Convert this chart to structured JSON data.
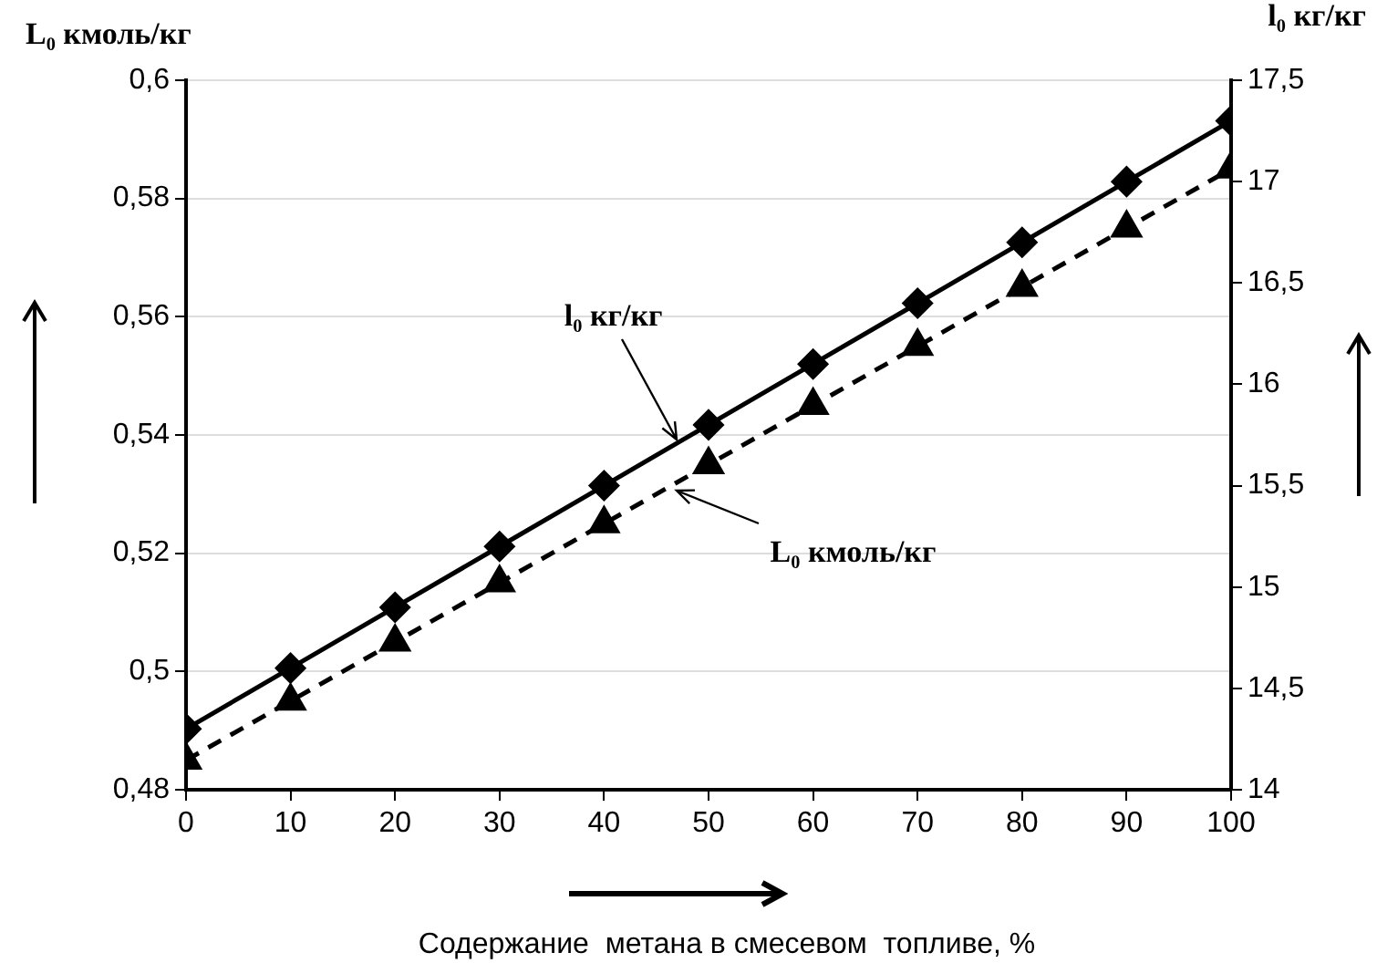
{
  "chart_data": {
    "type": "line",
    "xlabel": "Содержание  метана в смесевом  топливе, %",
    "ylabel": "L₀ кмоль/кг",
    "y2label": "l₀ кг/кг",
    "x": [
      0,
      10,
      20,
      30,
      40,
      50,
      60,
      70,
      80,
      90,
      100
    ],
    "series": [
      {
        "name": "l₀ кг/кг",
        "color": "#000000",
        "axis": "y2",
        "marker": "diamond",
        "line_style": "solid",
        "values": [
          14.3,
          14.6,
          14.9,
          15.2,
          15.5,
          15.8,
          16.1,
          16.4,
          16.7,
          17.0,
          17.3
        ]
      },
      {
        "name": "L₀ кмоль/кг",
        "color": "#000000",
        "marker": "triangle",
        "line_style": "dashed",
        "values": [
          0.485,
          0.495,
          0.505,
          0.515,
          0.525,
          0.535,
          0.545,
          0.555,
          0.565,
          0.575,
          0.585
        ]
      }
    ],
    "xlim": [
      0,
      100
    ],
    "xticks": [
      0,
      10,
      20,
      30,
      40,
      50,
      60,
      70,
      80,
      90,
      100
    ],
    "ylim": [
      0.48,
      0.6
    ],
    "yticks": [
      {
        "value": 0.48,
        "label": "0,48"
      },
      {
        "value": 0.5,
        "label": "0,5"
      },
      {
        "value": 0.52,
        "label": "0,52"
      },
      {
        "value": 0.54,
        "label": "0,54"
      },
      {
        "value": 0.56,
        "label": "0,56"
      },
      {
        "value": 0.58,
        "label": "0,58"
      },
      {
        "value": 0.6,
        "label": "0,6"
      }
    ],
    "y2lim": [
      14,
      17.5
    ],
    "y2ticks": [
      14,
      {
        "value": 14.5,
        "label": "14,5"
      },
      15,
      {
        "value": 15.5,
        "label": "15,5"
      },
      16,
      {
        "value": 16.5,
        "label": "16,5"
      },
      17,
      {
        "value": 17.5,
        "label": "17,5"
      }
    ],
    "grid": "y",
    "legend": false
  }
}
